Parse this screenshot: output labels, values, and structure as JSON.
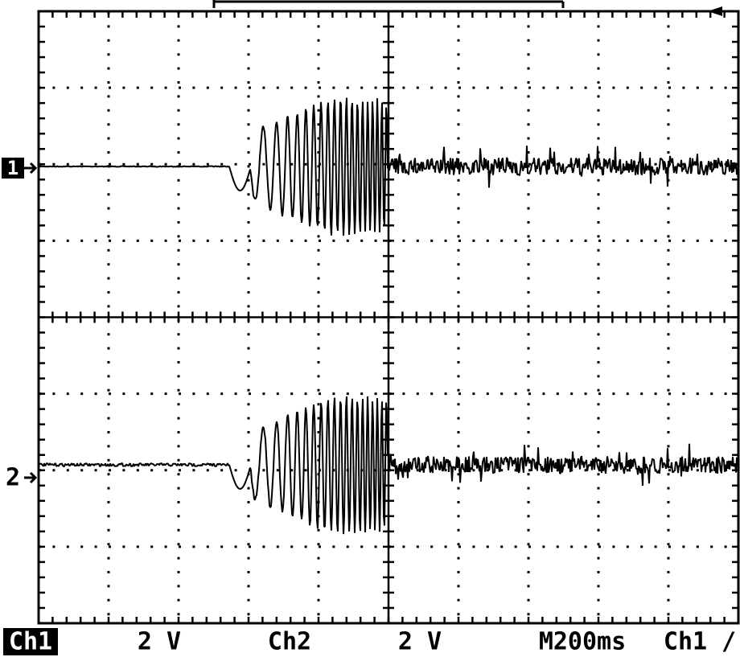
{
  "markers": {
    "ch1": "1",
    "ch2": "2"
  },
  "status": {
    "ch1_label": "Ch1",
    "ch1_scale": "2 V",
    "ch2_label": "Ch2",
    "ch2_scale": "2 V",
    "timebase": "M200ms",
    "trigger_source": "Ch1",
    "trigger_slope": "/"
  }
}
